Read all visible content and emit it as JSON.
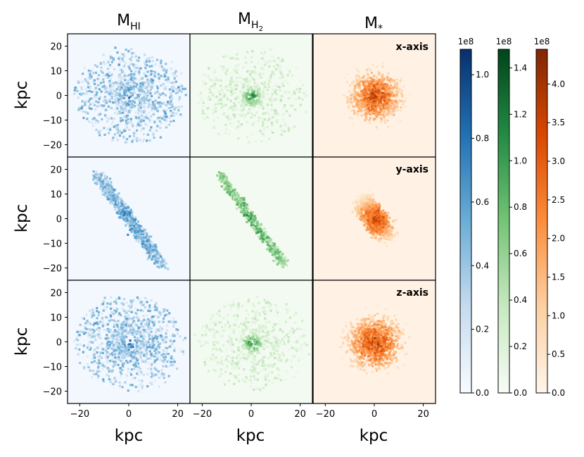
{
  "chart_data": {
    "type": "heatmap",
    "columns": [
      {
        "title": "M",
        "subscript": "HI",
        "cmap": "blues",
        "max_color": "#08306b",
        "min_color": "#f7fbff"
      },
      {
        "title": "M",
        "subscript": "H",
        "subscript2": "2",
        "cmap": "greens",
        "max_color": "#00441b",
        "min_color": "#f7fcf5"
      },
      {
        "title": "M",
        "subscript": "*",
        "cmap": "oranges",
        "max_color": "#7f2704",
        "min_color": "#fff5eb"
      }
    ],
    "rows": [
      {
        "label": "x-axis",
        "ylabel": "kpc"
      },
      {
        "label": "y-axis",
        "ylabel": "kpc"
      },
      {
        "label": "z-axis",
        "ylabel": "kpc"
      }
    ],
    "xlabel": "kpc",
    "xlim": [
      -25,
      25
    ],
    "ylim": [
      -25,
      25
    ],
    "xticks": [
      -20,
      0,
      20
    ],
    "yticks": [
      20,
      10,
      0,
      -10,
      -20
    ],
    "colorbars": [
      {
        "name": "M_HI",
        "exponent": "1e8",
        "max": 1.08,
        "ticks": [
          0.0,
          0.2,
          0.4,
          0.6,
          0.8,
          1.0
        ],
        "tick_labels": [
          "0.0",
          "0.2",
          "0.4",
          "0.6",
          "0.8",
          "1.0"
        ]
      },
      {
        "name": "M_H2",
        "exponent": "1e8",
        "max": 1.48,
        "ticks": [
          0.0,
          0.2,
          0.4,
          0.6,
          0.8,
          1.0,
          1.2,
          1.4
        ],
        "tick_labels": [
          "0.0",
          "0.2",
          "0.4",
          "0.6",
          "0.8",
          "1.0",
          "1.2",
          "1.4"
        ]
      },
      {
        "name": "M_star",
        "exponent": "1e8",
        "max": 4.45,
        "ticks": [
          0.0,
          0.5,
          1.0,
          1.5,
          2.0,
          2.5,
          3.0,
          3.5,
          4.0
        ],
        "tick_labels": [
          "0.0",
          "0.5",
          "1.0",
          "1.5",
          "2.0",
          "2.5",
          "3.0",
          "3.5",
          "4.0"
        ]
      }
    ]
  }
}
